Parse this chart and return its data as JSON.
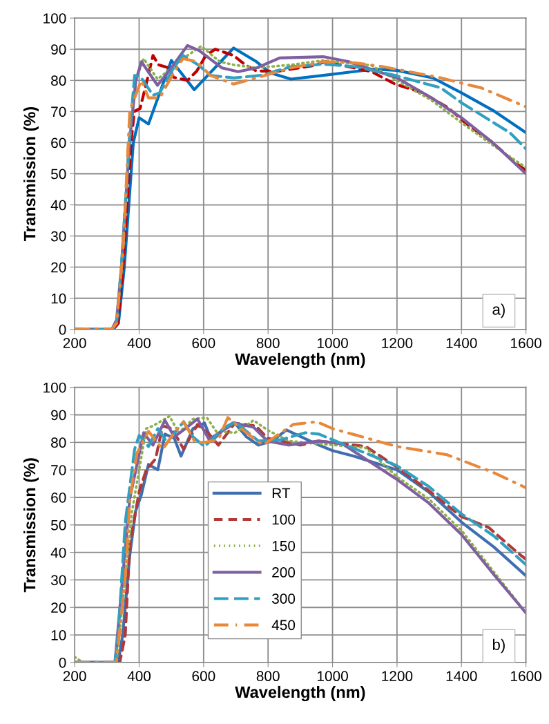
{
  "chart_data": [
    {
      "type": "line",
      "xlabel": "Wavelength (nm)",
      "ylabel": "Transmission (%)",
      "xlim": [
        200,
        1600
      ],
      "xticks": [
        200,
        400,
        600,
        800,
        1000,
        1200,
        1400,
        1600
      ],
      "ylim": [
        0,
        100
      ],
      "yticks": [
        0,
        10,
        20,
        30,
        40,
        50,
        60,
        70,
        80,
        90,
        100
      ],
      "grid": true,
      "legend": false,
      "annotations": [
        "a)"
      ],
      "series": [
        {
          "color": "#0070c0",
          "line_style": "solid",
          "x": [
            200,
            320,
            336,
            354,
            382,
            400,
            429,
            464,
            500,
            571,
            693,
            764,
            807,
            871,
            971,
            1129,
            1200,
            1311,
            1400,
            1497,
            1600
          ],
          "values": [
            0,
            0,
            2,
            20,
            60,
            68,
            66,
            76,
            86.4,
            77,
            90.4,
            86,
            82.4,
            80.4,
            81.6,
            83.6,
            83.2,
            80.8,
            76,
            70.4,
            63.2
          ]
        },
        {
          "color": "#c00000",
          "line_style": "dashed",
          "x": [
            200,
            320,
            334,
            350,
            375,
            385,
            403,
            420,
            443,
            460,
            493,
            507,
            550,
            579,
            607,
            636,
            693,
            729,
            764,
            836,
            943,
            978,
            1121,
            1194,
            1279,
            1359,
            1411,
            1497,
            1561,
            1600
          ],
          "values": [
            0,
            0,
            2,
            20,
            60,
            70,
            71,
            78,
            88,
            85,
            84,
            81,
            80,
            83,
            88,
            90,
            88,
            85,
            83,
            83,
            84.8,
            86,
            82.8,
            78.8,
            76,
            71.2,
            66.4,
            60,
            54,
            51
          ]
        },
        {
          "color": "#8db04a",
          "line_style": "dotted",
          "x": [
            200,
            315,
            330,
            345,
            370,
            390,
            414,
            457,
            550,
            593,
            650,
            693,
            764,
            871,
            971,
            1121,
            1200,
            1307,
            1400,
            1497,
            1600
          ],
          "values": [
            0,
            0,
            2,
            20,
            60,
            80,
            87,
            80.4,
            88,
            91,
            86,
            85,
            84,
            85,
            86.4,
            84.8,
            80,
            73.6,
            66.4,
            59.2,
            52
          ]
        },
        {
          "color": "#7f5fa0",
          "line_style": "solid",
          "x": [
            200,
            315,
            330,
            345,
            370,
            390,
            407,
            457,
            500,
            550,
            586,
            657,
            707,
            764,
            836,
            971,
            1050,
            1200,
            1307,
            1400,
            1497,
            1600
          ],
          "values": [
            0,
            0,
            3,
            20,
            60,
            80,
            86,
            78.4,
            84,
            91.2,
            89.6,
            84,
            82.8,
            84,
            87.2,
            87.6,
            86,
            80.8,
            74.4,
            68,
            60,
            50
          ]
        },
        {
          "color": "#31a0c0",
          "line_style": "longdash",
          "x": [
            200,
            315,
            330,
            345,
            370,
            386,
            407,
            443,
            464,
            507,
            536,
            586,
            621,
            693,
            779,
            871,
            971,
            1071,
            1193,
            1336,
            1400,
            1550,
            1600
          ],
          "values": [
            0,
            0,
            2,
            20,
            62,
            81.6,
            80.8,
            75.2,
            76,
            84,
            88,
            84.8,
            81.6,
            80.8,
            81.6,
            84.4,
            85.2,
            84.4,
            81.6,
            77.6,
            72.8,
            63.2,
            58
          ]
        },
        {
          "color": "#e8883a",
          "line_style": "dashdot",
          "x": [
            200,
            315,
            330,
            350,
            371,
            407,
            429,
            464,
            507,
            536,
            579,
            621,
            693,
            764,
            871,
            971,
            1071,
            1157,
            1336,
            1411,
            1461,
            1589,
            1600
          ],
          "values": [
            0,
            0,
            2,
            25,
            70.4,
            80,
            74.4,
            74.4,
            82.4,
            87,
            86,
            81.6,
            78.8,
            80.8,
            84,
            86,
            85.6,
            84.4,
            80.8,
            78.8,
            77.6,
            72,
            71.5
          ]
        }
      ]
    },
    {
      "type": "line",
      "xlabel": "Wavelength (nm)",
      "ylabel": "Transmission (%)",
      "xlim": [
        200,
        1600
      ],
      "xticks": [
        200,
        400,
        600,
        800,
        1000,
        1200,
        1400,
        1600
      ],
      "ylim": [
        0,
        100
      ],
      "yticks": [
        0,
        10,
        20,
        30,
        40,
        50,
        60,
        70,
        80,
        90,
        100
      ],
      "grid": true,
      "legend": "bottom center",
      "annotations": [
        "b)"
      ],
      "series": [
        {
          "name": "RT",
          "color": "#3f6fb0",
          "line_style": "solid",
          "x": [
            200,
            335,
            349,
            371,
            389,
            407,
            429,
            458,
            480,
            509,
            530,
            567,
            603,
            625,
            661,
            697,
            733,
            770,
            813,
            857,
            958,
            1000,
            1066,
            1200,
            1298,
            1400,
            1500,
            1600
          ],
          "values": [
            0,
            0,
            10,
            39,
            55,
            61,
            72,
            70,
            83,
            81.5,
            75,
            85,
            87,
            80.5,
            84.5,
            87,
            82,
            79,
            80.5,
            84.5,
            79,
            77,
            75,
            70,
            62,
            51,
            42,
            31.5
          ]
        },
        {
          "name": "100",
          "color": "#b03a3a",
          "line_style": "dashed",
          "x": [
            200,
            340,
            357,
            371,
            400,
            422,
            451,
            473,
            502,
            538,
            581,
            617,
            646,
            697,
            762,
            798,
            842,
            900,
            958,
            1103,
            1200,
            1298,
            1400,
            1485,
            1573,
            1600
          ],
          "values": [
            0,
            0,
            10,
            43,
            62,
            70,
            74,
            86,
            85,
            77.5,
            86.5,
            83,
            79,
            87,
            86,
            81.5,
            80.5,
            79,
            80.5,
            78.5,
            71,
            62.5,
            53,
            49,
            40,
            37.5
          ]
        },
        {
          "name": "150",
          "color": "#8db04a",
          "line_style": "dotted",
          "x": [
            200,
            225,
            330,
            349,
            378,
            422,
            443,
            494,
            523,
            567,
            610,
            639,
            697,
            755,
            798,
            864,
            958,
            1103,
            1200,
            1298,
            1400,
            1500,
            1600
          ],
          "values": [
            2,
            0,
            0,
            22,
            55,
            85,
            86,
            89.5,
            83.5,
            88.5,
            89,
            84,
            83.5,
            88,
            84.5,
            80.5,
            79.5,
            78,
            67.5,
            59.5,
            48,
            33,
            18
          ]
        },
        {
          "name": "200",
          "color": "#7f5fa0",
          "line_style": "solid",
          "x": [
            200,
            325,
            342,
            371,
            414,
            443,
            480,
            509,
            538,
            581,
            617,
            661,
            697,
            755,
            798,
            864,
            958,
            1030,
            1200,
            1298,
            1400,
            1500,
            1600
          ],
          "values": [
            0,
            0,
            22,
            59.5,
            83.5,
            79,
            88,
            82,
            84.5,
            88.5,
            81,
            84.5,
            87,
            85.5,
            80.5,
            79,
            80.5,
            79.5,
            66.5,
            58,
            46.5,
            32,
            18
          ]
        },
        {
          "name": "300",
          "color": "#31a0c0",
          "line_style": "longdash",
          "x": [
            200,
            325,
            335,
            357,
            386,
            400,
            429,
            458,
            487,
            538,
            567,
            603,
            661,
            697,
            770,
            842,
            915,
            958,
            1030,
            1200,
            1298,
            1400,
            1500,
            1600
          ],
          "values": [
            0,
            0,
            10,
            51,
            77.5,
            82.5,
            78.5,
            85,
            80,
            87.5,
            82,
            78.5,
            85,
            87.5,
            80.5,
            81,
            83.5,
            83,
            79.5,
            71.5,
            64,
            54,
            46,
            35.5
          ]
        },
        {
          "name": "450",
          "color": "#e8883a",
          "line_style": "dashdot",
          "x": [
            200,
            328,
            335,
            357,
            371,
            393,
            429,
            473,
            509,
            538,
            574,
            603,
            646,
            675,
            733,
            784,
            878,
            951,
            1000,
            1138,
            1200,
            1355,
            1400,
            1500,
            1600
          ],
          "values": [
            0,
            0,
            6,
            31,
            59,
            76,
            84,
            77.5,
            83.5,
            87.5,
            80,
            80,
            81,
            89,
            83.5,
            79,
            86.5,
            87.5,
            85,
            80.5,
            78.5,
            75.5,
            73.5,
            69,
            63.5
          ]
        }
      ]
    }
  ]
}
